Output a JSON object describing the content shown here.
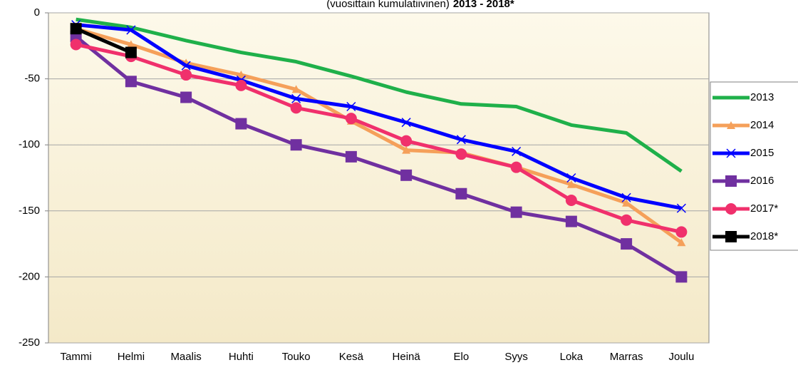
{
  "chart_data": {
    "type": "line",
    "subtitle": "(vuosittain kumulatiivinen)",
    "title": "2013 - 2018*",
    "categories": [
      "Tammi",
      "Helmi",
      "Maalis",
      "Huhti",
      "Touko",
      "Kesä",
      "Heinä",
      "Elo",
      "Syys",
      "Loka",
      "Marras",
      "Joulu"
    ],
    "series": [
      {
        "name": "2013",
        "color": "#1fb04a",
        "marker": "none",
        "values": [
          -5,
          -11,
          -21,
          -30,
          -37,
          -48,
          -60,
          -69,
          -71,
          -85,
          -91,
          -120
        ]
      },
      {
        "name": "2014",
        "color": "#f5a05a",
        "marker": "triangle",
        "values": [
          -12,
          -24,
          -38,
          -47,
          -58,
          -82,
          -104,
          -106,
          -117,
          -130,
          -144,
          -174
        ]
      },
      {
        "name": "2015",
        "color": "#0000ff",
        "marker": "x",
        "values": [
          -9,
          -13,
          -40,
          -51,
          -65,
          -71,
          -83,
          -96,
          -105,
          -125,
          -140,
          -148
        ]
      },
      {
        "name": "2016",
        "color": "#7030a0",
        "marker": "square",
        "values": [
          -18,
          -52,
          -64,
          -84,
          -100,
          -109,
          -123,
          -137,
          -151,
          -158,
          -175,
          -200
        ]
      },
      {
        "name": "2017*",
        "color": "#f0306c",
        "marker": "circle",
        "values": [
          -24,
          -33,
          -47,
          -55,
          -72,
          -80,
          -97,
          -107,
          -117,
          -142,
          -157,
          -166
        ]
      },
      {
        "name": "2018*",
        "color": "#000000",
        "marker": "square",
        "values": [
          -12,
          -30,
          null,
          null,
          null,
          null,
          null,
          null,
          null,
          null,
          null,
          null
        ]
      }
    ],
    "ylim": [
      -250,
      0
    ],
    "yticks": [
      -250,
      -200,
      -150,
      -100,
      -50,
      0
    ],
    "grid": true,
    "legend": "right"
  }
}
